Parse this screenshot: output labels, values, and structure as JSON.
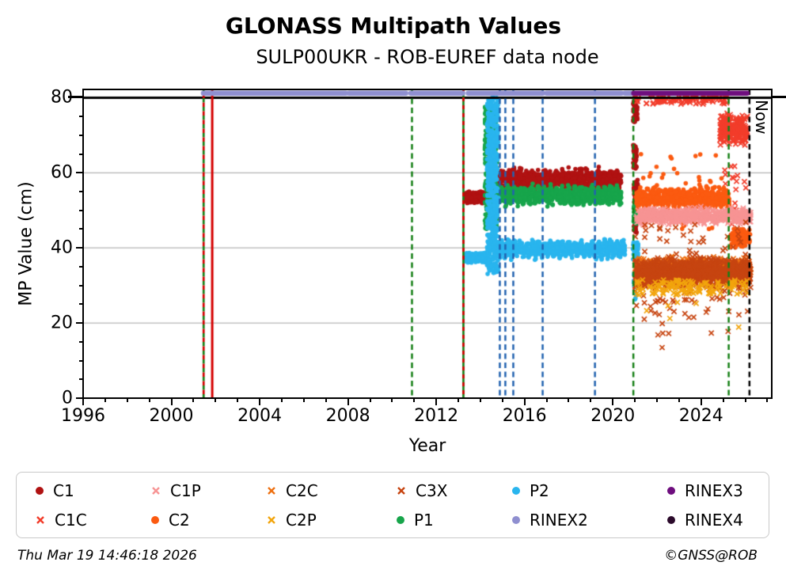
{
  "title": "GLONASS Multipath Values",
  "subtitle": "SULP00UKR - ROB-EUREF data node",
  "footer": {
    "timestamp": "Thu Mar 19 14:46:18 2026",
    "credit": "©GNSS@ROB"
  },
  "now_label": "Now",
  "chart_data": {
    "type": "scatter",
    "title": "GLONASS Multipath Values",
    "subtitle": "SULP00UKR - ROB-EUREF data node",
    "xlabel": "Year",
    "ylabel": "MP Value (cm)",
    "xlim": [
      1996,
      2027.2
    ],
    "ylim": [
      0,
      82.2
    ],
    "xticks_major": [
      1996,
      2000,
      2004,
      2008,
      2012,
      2016,
      2020,
      2024
    ],
    "x_minor_step": 1,
    "yticks_major": [
      0,
      20,
      40,
      60,
      80
    ],
    "y_minor_step": 5,
    "gridlines_y": [
      20,
      40,
      60
    ],
    "grid_color": "#b3b3b3",
    "hline": {
      "y": 80,
      "color": "#000000",
      "width": 3
    },
    "legend_position": "below",
    "legend": [
      {
        "label": "C1",
        "marker": "circle",
        "color": "#b01212"
      },
      {
        "label": "C1P",
        "marker": "x",
        "color": "#f79494"
      },
      {
        "label": "C2C",
        "marker": "x",
        "color": "#ee7011"
      },
      {
        "label": "C3X",
        "marker": "x",
        "color": "#c74511"
      },
      {
        "label": "P2",
        "marker": "circle",
        "color": "#29b5ee"
      },
      {
        "label": "RINEX3",
        "marker": "circle",
        "color": "#6e0e7e"
      },
      {
        "label": "C1C",
        "marker": "x",
        "color": "#f23d2b"
      },
      {
        "label": "C2",
        "marker": "circle",
        "color": "#fb5a10"
      },
      {
        "label": "C2P",
        "marker": "x",
        "color": "#f2a50d"
      },
      {
        "label": "P1",
        "marker": "circle",
        "color": "#17a54b"
      },
      {
        "label": "RINEX2",
        "marker": "circle",
        "color": "#8f8fd0"
      },
      {
        "label": "RINEX4",
        "marker": "circle",
        "color": "#2b0a2b"
      }
    ],
    "series": [
      {
        "name": "C1",
        "marker": "circle",
        "color": "#b01212",
        "size": 2.8,
        "bands": [
          {
            "x": [
              2013.28,
              2014.32
            ],
            "y": [
              51.8,
              55.2
            ],
            "n": 260
          },
          {
            "x": [
              2014.32,
              2014.62
            ],
            "y": [
              55,
              67
            ],
            "n": 80,
            "dist": "uniform"
          },
          {
            "x": [
              2014.62,
              2020.38
            ],
            "y": [
              55.5,
              61
            ],
            "n": 950,
            "wave": 0.8
          },
          {
            "x": [
              2020.92,
              2021.12
            ],
            "y": [
              73.5,
              80
            ],
            "n": 55,
            "dist": "uniform"
          },
          {
            "x": [
              2020.92,
              2021.08
            ],
            "y": [
              61,
              67.5
            ],
            "n": 45,
            "dist": "uniform"
          },
          {
            "x": [
              2020.95,
              2021.15
            ],
            "y": [
              51.5,
              58.5
            ],
            "n": 70
          },
          {
            "x": [
              2020.95,
              2021.08
            ],
            "y": [
              44,
              48
            ],
            "n": 25,
            "dist": "uniform"
          }
        ]
      },
      {
        "name": "P1",
        "marker": "circle",
        "color": "#17a54b",
        "size": 2.8,
        "bands": [
          {
            "x": [
              2014.2,
              2014.75
            ],
            "y": [
              45,
              78
            ],
            "n": 380,
            "dist": "uniform"
          },
          {
            "x": [
              2014.62,
              2020.38
            ],
            "y": [
              51.5,
              56.5
            ],
            "n": 950,
            "wave": 0.7
          },
          {
            "x": [
              2020.92,
              2021.08
            ],
            "y": [
              46.5,
              51.5
            ],
            "n": 40,
            "dist": "uniform"
          }
        ]
      },
      {
        "name": "P2",
        "marker": "circle",
        "color": "#29b5ee",
        "size": 2.8,
        "bands": [
          {
            "x": [
              2013.28,
              2014.38
            ],
            "y": [
              36,
              38.8
            ],
            "n": 300
          },
          {
            "x": [
              2014.3,
              2014.82
            ],
            "y": [
              33,
              80
            ],
            "n": 480,
            "dist": "uniform"
          },
          {
            "x": [
              2014.82,
              2020.55
            ],
            "y": [
              37.5,
              41.8
            ],
            "n": 950,
            "wave": 0.8
          },
          {
            "x": [
              2020.9,
              2021.15
            ],
            "y": [
              36.5,
              41.5
            ],
            "n": 45,
            "dist": "uniform"
          },
          {
            "x": [
              2020.95,
              2021.1
            ],
            "y": [
              29.5,
              33.5
            ],
            "n": 30,
            "dist": "uniform"
          },
          {
            "x": [
              2021.0,
              2021.06
            ],
            "y": [
              26,
              28.5
            ],
            "n": 4,
            "dist": "uniform"
          }
        ]
      },
      {
        "name": "C1C",
        "marker": "x",
        "color": "#f23d2b",
        "size": 3.1,
        "bands": [
          {
            "x": [
              2021.0,
              2025.2
            ],
            "y": [
              78.2,
              80.6
            ],
            "n": 95,
            "dist": "uniform"
          },
          {
            "x": [
              2024.85,
              2026.1
            ],
            "y": [
              67,
              76
            ],
            "n": 230
          },
          {
            "x": [
              2025.0,
              2026.1
            ],
            "y": [
              55,
              64
            ],
            "n": 12,
            "dist": "uniform"
          },
          {
            "x": [
              2025.3,
              2026.05
            ],
            "y": [
              44,
              52
            ],
            "n": 6,
            "dist": "uniform"
          }
        ]
      },
      {
        "name": "C2",
        "marker": "circle",
        "color": "#fb5a10",
        "size": 2.8,
        "bands": [
          {
            "x": [
              2021.05,
              2025.28
            ],
            "y": [
              50.5,
              56
            ],
            "n": 700,
            "wave": 0.6
          },
          {
            "x": [
              2021.1,
              2025.2
            ],
            "y": [
              56,
              65.5
            ],
            "n": 25,
            "dist": "uniform"
          },
          {
            "x": [
              2021.1,
              2025.2
            ],
            "y": [
              45,
              50.5
            ],
            "n": 15,
            "dist": "uniform"
          },
          {
            "x": [
              2025.3,
              2026.22
            ],
            "y": [
              40,
              45.5
            ],
            "n": 130
          }
        ]
      },
      {
        "name": "C1P",
        "marker": "x",
        "color": "#f79494",
        "size": 3.1,
        "bands": [
          {
            "x": [
              2021.05,
              2026.25
            ],
            "y": [
              46.3,
              50.6
            ],
            "n": 650,
            "wave": 0.5
          }
        ]
      },
      {
        "name": "C2C",
        "marker": "x",
        "color": "#ee7011",
        "size": 3.1,
        "bands": [
          {
            "x": [
              2021.0,
              2026.25
            ],
            "y": [
              31,
              38
            ],
            "n": 550
          }
        ]
      },
      {
        "name": "C3X",
        "marker": "x",
        "color": "#c74511",
        "size": 3.1,
        "bands": [
          {
            "x": [
              2021.0,
              2026.25
            ],
            "y": [
              29,
              37.5
            ],
            "n": 1100
          },
          {
            "x": [
              2021.0,
              2026.2
            ],
            "y": [
              21,
              29
            ],
            "n": 45,
            "dist": "uniform"
          },
          {
            "x": [
              2021.0,
              2026.2
            ],
            "y": [
              37.5,
              47
            ],
            "n": 35,
            "dist": "uniform"
          },
          {
            "x": [
              2021.2,
              2026.1
            ],
            "y": [
              9,
              21
            ],
            "n": 7,
            "dist": "uniform"
          }
        ]
      },
      {
        "name": "C2P",
        "marker": "x",
        "color": "#f2a50d",
        "size": 3.1,
        "bands": [
          {
            "x": [
              2021.0,
              2026.2
            ],
            "y": [
              27.5,
              31.5
            ],
            "n": 130,
            "dist": "uniform"
          },
          {
            "x": [
              2021.3,
              2025.9
            ],
            "y": [
              10,
              26
            ],
            "n": 6,
            "dist": "uniform"
          }
        ]
      }
    ],
    "rinex_bars": [
      {
        "name": "RINEX2",
        "color": "#8f8fd0",
        "y": 81.2,
        "segments": [
          [
            2001.45,
            2007.9
          ],
          [
            2008.05,
            2010.62
          ],
          [
            2010.85,
            2013.2
          ],
          [
            2013.45,
            2016.82
          ],
          [
            2017.0,
            2020.38
          ],
          [
            2020.55,
            2020.85
          ]
        ]
      },
      {
        "name": "RINEX3",
        "color": "#6e0e7e",
        "y": 81.2,
        "segments": [
          [
            2020.95,
            2026.08
          ]
        ]
      }
    ],
    "vlines": [
      {
        "x": 2001.46,
        "style": "alt-dash",
        "colors": [
          "#178017",
          "#d40000"
        ]
      },
      {
        "x": 2001.85,
        "style": "solid",
        "color": "#d40000"
      },
      {
        "x": 2010.9,
        "style": "dashed",
        "color": "#178017"
      },
      {
        "x": 2013.23,
        "style": "solid-plus-dash",
        "colors": [
          "#178017",
          "#d40000"
        ]
      },
      {
        "x": 2014.88,
        "style": "dashed",
        "color": "#2263b0"
      },
      {
        "x": 2015.13,
        "style": "dashed",
        "color": "#2263b0"
      },
      {
        "x": 2015.49,
        "style": "dashed",
        "color": "#2263b0"
      },
      {
        "x": 2016.82,
        "style": "dashed",
        "color": "#2263b0"
      },
      {
        "x": 2019.19,
        "style": "dashed",
        "color": "#2263b0"
      },
      {
        "x": 2020.93,
        "style": "dashed",
        "color": "#178017"
      },
      {
        "x": 2025.25,
        "style": "dashed",
        "color": "#178017"
      },
      {
        "x": 2026.19,
        "style": "dashed",
        "color": "#000000",
        "label": "Now"
      }
    ]
  }
}
